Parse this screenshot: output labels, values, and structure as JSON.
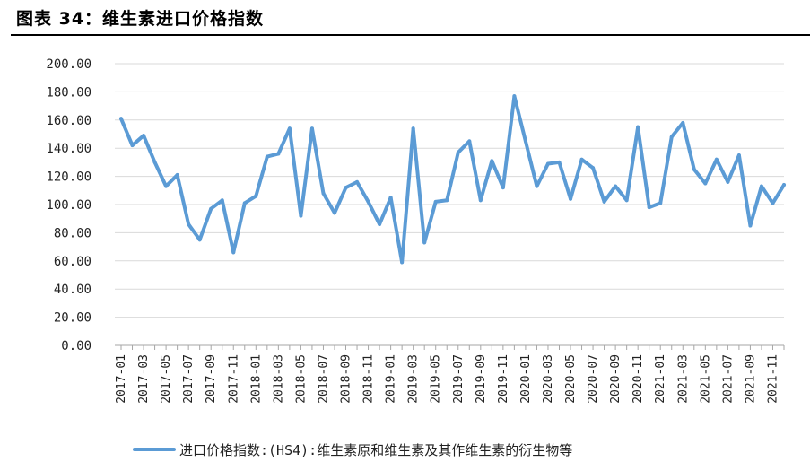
{
  "figure": {
    "title": "图表 34：维生素进口价格指数"
  },
  "chart_data": {
    "type": "line",
    "title": "",
    "xlabel": "",
    "ylabel": "",
    "ylim": [
      0,
      200
    ],
    "yticks": [
      "0.00",
      "20.00",
      "40.00",
      "60.00",
      "80.00",
      "100.00",
      "120.00",
      "140.00",
      "160.00",
      "180.00",
      "200.00"
    ],
    "grid": true,
    "legend_position": "bottom",
    "x": [
      "2017-01",
      "2017-02",
      "2017-03",
      "2017-04",
      "2017-05",
      "2017-06",
      "2017-07",
      "2017-08",
      "2017-09",
      "2017-10",
      "2017-11",
      "2017-12",
      "2018-01",
      "2018-02",
      "2018-03",
      "2018-04",
      "2018-05",
      "2018-06",
      "2018-07",
      "2018-08",
      "2018-09",
      "2018-10",
      "2018-11",
      "2018-12",
      "2019-01",
      "2019-02",
      "2019-03",
      "2019-04",
      "2019-05",
      "2019-06",
      "2019-07",
      "2019-08",
      "2019-09",
      "2019-10",
      "2019-11",
      "2019-12",
      "2020-01",
      "2020-02",
      "2020-03",
      "2020-04",
      "2020-05",
      "2020-06",
      "2020-07",
      "2020-08",
      "2020-09",
      "2020-10",
      "2020-11",
      "2020-12",
      "2021-01",
      "2021-02",
      "2021-03",
      "2021-04",
      "2021-05",
      "2021-06",
      "2021-07",
      "2021-08",
      "2021-09",
      "2021-10",
      "2021-11",
      "2021-12"
    ],
    "x_tick_labels": [
      "2017-01",
      "2017-03",
      "2017-05",
      "2017-07",
      "2017-09",
      "2017-11",
      "2018-01",
      "2018-03",
      "2018-05",
      "2018-07",
      "2018-09",
      "2018-11",
      "2019-01",
      "2019-03",
      "2019-05",
      "2019-07",
      "2019-09",
      "2019-11",
      "2020-01",
      "2020-03",
      "2020-05",
      "2020-07",
      "2020-09",
      "2020-11",
      "2021-01",
      "2021-03",
      "2021-05",
      "2021-07",
      "2021-09",
      "2021-11"
    ],
    "series": [
      {
        "name": "进口价格指数:(HS4):维生素原和维生素及其作维生素的衍生物等",
        "color": "#5b9bd5",
        "values": [
          161,
          142,
          149,
          130,
          113,
          121,
          86,
          75,
          97,
          103,
          66,
          101,
          106,
          134,
          136,
          154,
          92,
          154,
          108,
          94,
          112,
          116,
          102,
          86,
          105,
          59,
          154,
          73,
          102,
          103,
          137,
          145,
          103,
          131,
          112,
          177,
          145,
          113,
          129,
          130,
          104,
          132,
          126,
          102,
          113,
          103,
          155,
          98,
          101,
          148,
          158,
          125,
          115,
          132,
          116,
          135,
          85,
          113,
          101,
          114
        ]
      }
    ]
  }
}
